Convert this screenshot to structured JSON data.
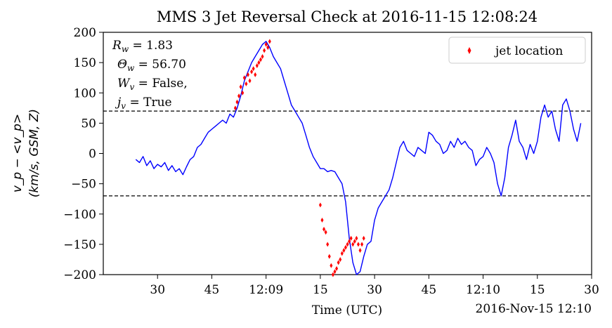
{
  "chart_data": {
    "type": "line",
    "title": "MMS 3 Jet Reversal Check at 2016-11-15 12:08:24",
    "xlabel": "Time (UTC)",
    "x_offset_label": "2016-Nov-15 12:10",
    "ylabel_line1": "v_p − <v_p>",
    "ylabel_line2": "(km/s, GSM, Z)",
    "ylim": [
      -200,
      200
    ],
    "yticks": [
      -200,
      -150,
      -100,
      -50,
      0,
      50,
      100,
      150,
      200
    ],
    "xlim_seconds_after_1208": [
      15,
      90
    ],
    "xticks": [
      {
        "t": 30,
        "label": "30"
      },
      {
        "t": 45,
        "label": "45"
      },
      {
        "t": 60,
        "label": "12:09"
      },
      {
        "t": 75,
        "label": "15"
      },
      {
        "t": 90,
        "label": "30"
      },
      {
        "t": 105,
        "label": "45"
      },
      {
        "t": 120,
        "label": "12:10"
      },
      {
        "t": 135,
        "label": "15"
      },
      {
        "t": 150,
        "label": "30"
      }
    ],
    "thresholds": [
      70,
      -70
    ],
    "annotation_lines": [
      "R_w = 1.83",
      "Θ_w = 56.70",
      "W_v = False,",
      "j_v = True"
    ],
    "legend": {
      "label": "jet location",
      "placement": "top-right"
    },
    "colors": {
      "series": "#0000ff",
      "jet": "#ff0000",
      "threshold": "#000000"
    },
    "series": [
      {
        "name": "",
        "x": [
          24,
          25,
          26,
          27,
          28,
          29,
          30,
          31,
          32,
          33,
          34,
          35,
          36,
          37,
          38,
          39,
          40,
          41,
          42,
          43,
          44,
          45,
          46,
          47,
          48,
          49,
          50,
          51,
          52,
          53,
          54,
          55,
          56,
          57,
          58,
          59,
          60,
          61,
          62,
          63,
          64,
          65,
          66,
          67,
          68,
          69,
          70,
          71,
          72,
          73,
          74,
          75,
          76,
          77,
          78,
          79,
          80,
          81,
          82,
          83,
          84,
          85,
          86,
          87,
          88,
          89,
          90,
          91,
          92,
          93,
          94,
          95,
          96,
          97,
          98,
          99,
          100,
          101,
          102,
          103,
          104,
          105,
          106,
          107,
          108,
          109,
          110,
          111,
          112,
          113,
          114,
          115,
          116,
          117,
          118,
          119,
          120,
          121,
          122,
          123,
          124,
          125,
          126,
          127,
          128,
          129,
          130,
          131,
          132,
          133,
          134,
          135,
          136,
          137,
          138,
          139,
          140,
          141,
          142,
          143,
          144,
          145,
          146,
          147
        ],
        "y": [
          -10,
          -15,
          -5,
          -20,
          -12,
          -25,
          -18,
          -22,
          -15,
          -28,
          -20,
          -30,
          -25,
          -35,
          -22,
          -10,
          -5,
          10,
          15,
          25,
          35,
          40,
          45,
          50,
          55,
          50,
          65,
          60,
          75,
          95,
          120,
          135,
          150,
          160,
          170,
          180,
          185,
          175,
          160,
          150,
          140,
          120,
          100,
          80,
          70,
          60,
          50,
          30,
          10,
          -5,
          -15,
          -25,
          -25,
          -30,
          -28,
          -30,
          -40,
          -50,
          -80,
          -140,
          -180,
          -200,
          -195,
          -170,
          -150,
          -145,
          -110,
          -90,
          -80,
          -70,
          -60,
          -40,
          -15,
          10,
          20,
          5,
          0,
          -5,
          10,
          5,
          0,
          35,
          30,
          20,
          15,
          0,
          5,
          20,
          10,
          25,
          15,
          20,
          10,
          5,
          -20,
          -10,
          -5,
          10,
          0,
          -15,
          -50,
          -70,
          -40,
          10,
          30,
          55,
          20,
          10,
          -10,
          15,
          0,
          20,
          60,
          80,
          60,
          70,
          40,
          20,
          80,
          90,
          70,
          40,
          20,
          50
        ]
      }
    ],
    "jet_points": {
      "x": [
        51.5,
        52,
        52.5,
        53,
        53.5,
        54,
        54.5,
        55,
        55.5,
        56,
        56.5,
        57,
        57.5,
        58,
        58.5,
        59,
        59.5,
        60,
        60.5,
        61,
        75,
        75.5,
        76,
        76.5,
        77,
        77.5,
        78,
        78.5,
        79,
        79.5,
        80,
        80.5,
        81,
        81.5,
        82,
        82.5,
        83,
        83.5,
        84,
        84.5,
        85,
        85.5,
        86,
        86.5,
        87
      ],
      "y": [
        75,
        85,
        95,
        110,
        100,
        125,
        115,
        130,
        120,
        135,
        140,
        130,
        145,
        150,
        155,
        160,
        170,
        180,
        175,
        185,
        -85,
        -110,
        -125,
        -130,
        -150,
        -170,
        -185,
        -200,
        -195,
        -190,
        -180,
        -175,
        -165,
        -160,
        -155,
        -150,
        -145,
        -140,
        -150,
        -145,
        -140,
        -150,
        -160,
        -150,
        -140
      ]
    }
  }
}
